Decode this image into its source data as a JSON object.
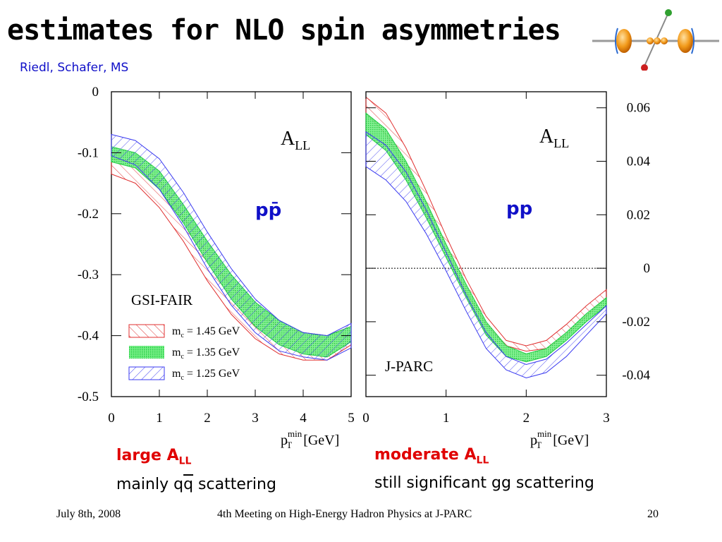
{
  "slide": {
    "title": "estimates for NLO spin asymmetries",
    "authors": "Riedl, Schafer, MS",
    "footer_date": "July 8th, 2008",
    "footer_meeting": "4th Meeting on High-Energy Hadron Physics at J-PARC",
    "footer_page": "20"
  },
  "captions": {
    "left_line1_a": "large A",
    "left_line1_sub": "LL",
    "left_line2_a": "mainly q",
    "left_line2_b": "q",
    "left_line2_c": " scattering",
    "right_line1_a": "moderate A",
    "right_line1_sub": "LL",
    "right_line2": "still significant gg scattering"
  },
  "colors": {
    "red": "#e03030",
    "green": "#22dd44",
    "blue": "#3a3af0",
    "text_blue": "#1010c8",
    "text_red": "#e00000"
  },
  "icon": "atom-collision-logo",
  "chart_data": [
    {
      "type": "area",
      "label": "GSI-FAIR",
      "observable": "A",
      "observable_sub": "LL",
      "process": "pp̄",
      "xlabel_p": "p",
      "xlabel_sup": "min",
      "xlabel_sub": "T",
      "xlabel_unit": "[GeV]",
      "xlim": [
        0,
        5
      ],
      "ylim": [
        -0.5,
        0
      ],
      "xticks": [
        "0",
        "1",
        "2",
        "3",
        "4",
        "5"
      ],
      "yticks": [
        "0",
        "-0.1",
        "-0.2",
        "-0.3",
        "-0.4",
        "-0.5"
      ],
      "x": [
        0,
        0.5,
        1,
        1.5,
        2,
        2.5,
        3,
        3.5,
        4,
        4.5,
        5
      ],
      "series": [
        {
          "name": "m_c = 1.45 GeV",
          "legend_m": "m",
          "legend_sub": "c",
          "legend_val": " = 1.45 GeV",
          "style": "red-hatch",
          "upper": [
            -0.11,
            -0.115,
            -0.145,
            -0.205,
            -0.265,
            -0.32,
            -0.36,
            -0.385,
            -0.395,
            -0.4,
            -0.385
          ],
          "lower": [
            -0.135,
            -0.15,
            -0.19,
            -0.245,
            -0.31,
            -0.365,
            -0.405,
            -0.43,
            -0.44,
            -0.44,
            -0.415
          ]
        },
        {
          "name": "m_c = 1.35 GeV",
          "legend_m": "m",
          "legend_sub": "c",
          "legend_val": " = 1.35 GeV",
          "style": "green-fill",
          "upper": [
            -0.09,
            -0.1,
            -0.13,
            -0.185,
            -0.245,
            -0.3,
            -0.345,
            -0.375,
            -0.395,
            -0.4,
            -0.385
          ],
          "lower": [
            -0.115,
            -0.125,
            -0.16,
            -0.215,
            -0.28,
            -0.34,
            -0.385,
            -0.415,
            -0.43,
            -0.435,
            -0.41
          ]
        },
        {
          "name": "m_c = 1.25 GeV",
          "legend_m": "m",
          "legend_sub": "c",
          "legend_val": " = 1.25 GeV",
          "style": "blue-hatch",
          "upper": [
            -0.07,
            -0.08,
            -0.11,
            -0.165,
            -0.23,
            -0.29,
            -0.34,
            -0.375,
            -0.395,
            -0.4,
            -0.38
          ],
          "lower": [
            -0.105,
            -0.12,
            -0.16,
            -0.22,
            -0.29,
            -0.35,
            -0.395,
            -0.425,
            -0.435,
            -0.44,
            -0.42
          ]
        }
      ]
    },
    {
      "type": "area",
      "label": "J-PARC",
      "observable": "A",
      "observable_sub": "LL",
      "process": "pp",
      "xlabel_p": "p",
      "xlabel_sup": "min",
      "xlabel_sub": "T",
      "xlabel_unit": "[GeV]",
      "xlim": [
        0,
        3
      ],
      "ylim": [
        -0.048,
        0.066
      ],
      "xticks": [
        "0",
        "1",
        "2",
        "3"
      ],
      "yticks": [
        "0.06",
        "0.04",
        "0.02",
        "0",
        "-0.02",
        "-0.04"
      ],
      "x": [
        0,
        0.25,
        0.5,
        0.75,
        1,
        1.25,
        1.5,
        1.75,
        2,
        2.25,
        2.5,
        2.75,
        3
      ],
      "series": [
        {
          "name": "m_c = 1.45 GeV",
          "style": "red-hatch",
          "upper": [
            0.064,
            0.058,
            0.045,
            0.029,
            0.012,
            -0.004,
            -0.018,
            -0.027,
            -0.029,
            -0.027,
            -0.021,
            -0.014,
            -0.008
          ],
          "lower": [
            0.058,
            0.05,
            0.037,
            0.021,
            0.006,
            -0.009,
            -0.021,
            -0.029,
            -0.031,
            -0.03,
            -0.025,
            -0.018,
            -0.011
          ]
        },
        {
          "name": "m_c = 1.35 GeV",
          "style": "green-fill",
          "upper": [
            0.058,
            0.052,
            0.04,
            0.025,
            0.009,
            -0.006,
            -0.02,
            -0.029,
            -0.032,
            -0.03,
            -0.024,
            -0.017,
            -0.011
          ],
          "lower": [
            0.05,
            0.044,
            0.033,
            0.019,
            0.004,
            -0.011,
            -0.025,
            -0.033,
            -0.035,
            -0.033,
            -0.027,
            -0.02,
            -0.014
          ]
        },
        {
          "name": "m_c = 1.25 GeV",
          "style": "blue-hatch",
          "upper": [
            0.051,
            0.046,
            0.036,
            0.022,
            0.006,
            -0.01,
            -0.024,
            -0.033,
            -0.036,
            -0.034,
            -0.028,
            -0.021,
            -0.014
          ],
          "lower": [
            0.038,
            0.033,
            0.025,
            0.013,
            -0.001,
            -0.016,
            -0.03,
            -0.038,
            -0.041,
            -0.039,
            -0.033,
            -0.025,
            -0.017
          ]
        }
      ]
    }
  ]
}
